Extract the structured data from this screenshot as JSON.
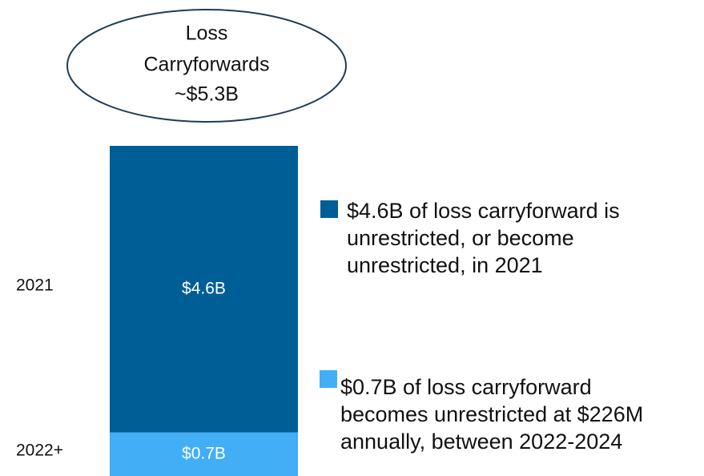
{
  "chart_data": {
    "type": "bar",
    "stacked": true,
    "annotation": {
      "lines": [
        "Loss",
        "Carryforwards",
        "~$5.3B"
      ]
    },
    "series": [
      {
        "name": "$4.6B of loss carryforward is unrestricted, or become unrestricted, in 2021",
        "period": "2021",
        "color": "#005e97",
        "values": [
          4.6
        ],
        "value_labels": [
          "$4.6B"
        ]
      },
      {
        "name": "$0.7B of loss carryforward becomes unrestricted at $226M annually, between 2022-2024",
        "period": "2022+",
        "color": "#41aef5",
        "values": [
          0.7
        ],
        "value_labels": [
          "$0.7B"
        ]
      }
    ]
  }
}
